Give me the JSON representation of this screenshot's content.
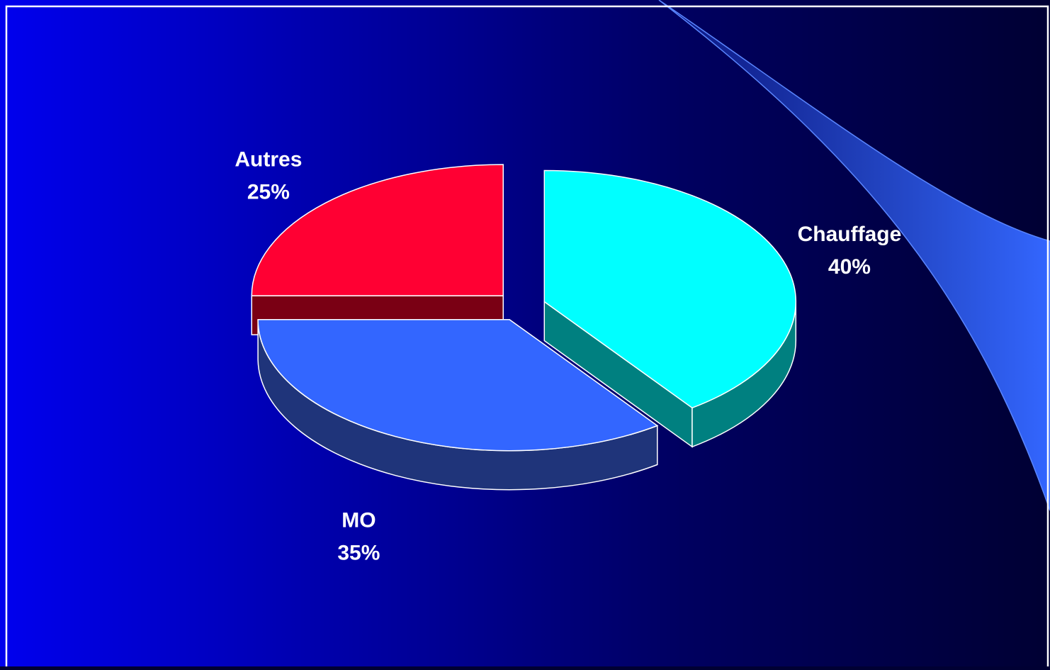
{
  "chart_data": {
    "type": "pie",
    "style": "3d-exploded",
    "slices": [
      {
        "label": "Chauffage",
        "value": 40,
        "value_label": "40%",
        "color": "#00FFFF",
        "side_color": "#008080"
      },
      {
        "label": "MO",
        "value": 35,
        "value_label": "35%",
        "color": "#3366FF",
        "side_color": "#1F347A"
      },
      {
        "label": "Autres",
        "value": 25,
        "value_label": "25%",
        "color": "#FF0033",
        "side_color": "#7A0014"
      }
    ]
  },
  "theme": {
    "background_gradient": [
      "#0000EE",
      "#000060",
      "#000033"
    ],
    "frame_color": "#FFFFFF",
    "swoosh_color": "#3366FF",
    "edge_color": "#FFFFFF"
  }
}
